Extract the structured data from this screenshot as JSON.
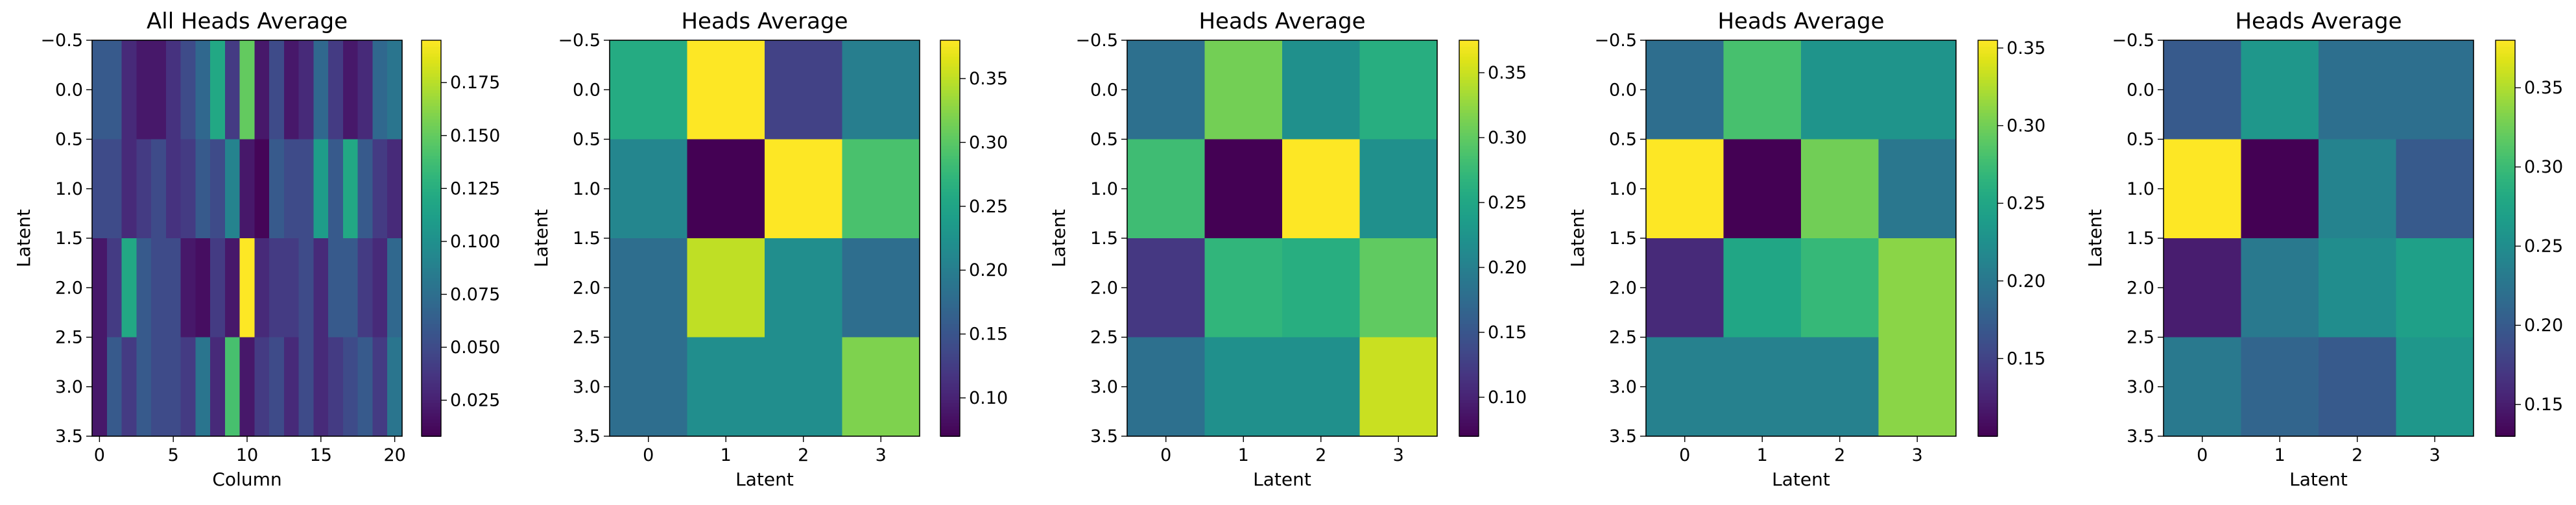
{
  "colormap": "viridis",
  "chart_data": [
    {
      "type": "heatmap",
      "title": "All Heads Average",
      "xlabel": "Column",
      "ylabel": "Latent",
      "x_ticks": [
        "0",
        "5",
        "10",
        "15",
        "20"
      ],
      "y_ticks": [
        "−0.5",
        "0.0",
        "0.5",
        "1.0",
        "1.5",
        "2.0",
        "2.5",
        "3.0",
        "3.5"
      ],
      "colorbar_ticks": [
        "0.025",
        "0.050",
        "0.075",
        "0.100",
        "0.125",
        "0.150",
        "0.175"
      ],
      "xlim": [
        -0.5,
        20.5
      ],
      "ylim": [
        3.5,
        -0.5
      ],
      "vmin": 0.008,
      "vmax": 0.195,
      "values": [
        [
          0.06,
          0.06,
          0.03,
          0.02,
          0.02,
          0.035,
          0.05,
          0.07,
          0.12,
          0.04,
          0.15,
          0.02,
          0.05,
          0.02,
          0.03,
          0.07,
          0.04,
          0.02,
          0.03,
          0.07,
          0.08
        ],
        [
          0.05,
          0.05,
          0.03,
          0.04,
          0.05,
          0.035,
          0.04,
          0.06,
          0.05,
          0.09,
          0.02,
          0.01,
          0.06,
          0.05,
          0.05,
          0.11,
          0.06,
          0.12,
          0.06,
          0.04,
          0.03
        ],
        [
          0.02,
          0.04,
          0.12,
          0.06,
          0.05,
          0.05,
          0.02,
          0.015,
          0.04,
          0.02,
          0.195,
          0.03,
          0.04,
          0.04,
          0.05,
          0.03,
          0.06,
          0.06,
          0.04,
          0.03,
          0.07
        ],
        [
          0.02,
          0.06,
          0.04,
          0.06,
          0.05,
          0.05,
          0.04,
          0.08,
          0.03,
          0.14,
          0.02,
          0.04,
          0.05,
          0.03,
          0.05,
          0.03,
          0.04,
          0.05,
          0.06,
          0.04,
          0.08
        ]
      ]
    },
    {
      "type": "heatmap",
      "title": "Heads Average",
      "xlabel": "Latent",
      "ylabel": "Latent",
      "x_ticks": [
        "0",
        "1",
        "2",
        "3"
      ],
      "y_ticks": [
        "−0.5",
        "0.0",
        "0.5",
        "1.0",
        "1.5",
        "2.0",
        "2.5",
        "3.0",
        "3.5"
      ],
      "colorbar_ticks": [
        "0.10",
        "0.15",
        "0.20",
        "0.25",
        "0.30",
        "0.35"
      ],
      "xlim": [
        -0.5,
        3.5
      ],
      "ylim": [
        3.5,
        -0.5
      ],
      "vmin": 0.07,
      "vmax": 0.38,
      "values": [
        [
          0.26,
          0.38,
          0.13,
          0.2
        ],
        [
          0.21,
          0.07,
          0.38,
          0.29
        ],
        [
          0.18,
          0.35,
          0.22,
          0.18
        ],
        [
          0.18,
          0.22,
          0.22,
          0.32
        ]
      ]
    },
    {
      "type": "heatmap",
      "title": "Heads Average",
      "xlabel": "Latent",
      "ylabel": "Latent",
      "x_ticks": [
        "0",
        "1",
        "2",
        "3"
      ],
      "y_ticks": [
        "−0.5",
        "0.0",
        "0.5",
        "1.0",
        "1.5",
        "2.0",
        "2.5",
        "3.0",
        "3.5"
      ],
      "colorbar_ticks": [
        "0.10",
        "0.15",
        "0.20",
        "0.25",
        "0.30",
        "0.35"
      ],
      "xlim": [
        -0.5,
        3.5
      ],
      "ylim": [
        3.5,
        -0.5
      ],
      "vmin": 0.07,
      "vmax": 0.375,
      "values": [
        [
          0.18,
          0.31,
          0.22,
          0.26
        ],
        [
          0.28,
          0.07,
          0.375,
          0.22
        ],
        [
          0.12,
          0.27,
          0.26,
          0.3
        ],
        [
          0.18,
          0.22,
          0.22,
          0.35
        ]
      ]
    },
    {
      "type": "heatmap",
      "title": "Heads Average",
      "xlabel": "Latent",
      "ylabel": "Latent",
      "x_ticks": [
        "0",
        "1",
        "2",
        "3"
      ],
      "y_ticks": [
        "−0.5",
        "0.0",
        "0.5",
        "1.0",
        "1.5",
        "2.0",
        "2.5",
        "3.0",
        "3.5"
      ],
      "colorbar_ticks": [
        "0.15",
        "0.20",
        "0.25",
        "0.30",
        "0.35"
      ],
      "xlim": [
        -0.5,
        3.5
      ],
      "ylim": [
        3.5,
        -0.5
      ],
      "vmin": 0.1,
      "vmax": 0.355,
      "values": [
        [
          0.19,
          0.28,
          0.23,
          0.23
        ],
        [
          0.355,
          0.1,
          0.3,
          0.2
        ],
        [
          0.13,
          0.25,
          0.27,
          0.31
        ],
        [
          0.21,
          0.21,
          0.21,
          0.31
        ]
      ]
    },
    {
      "type": "heatmap",
      "title": "Heads Average",
      "xlabel": "Latent",
      "ylabel": "Latent",
      "x_ticks": [
        "0",
        "1",
        "2",
        "3"
      ],
      "y_ticks": [
        "−0.5",
        "0.0",
        "0.5",
        "1.0",
        "1.5",
        "2.0",
        "2.5",
        "3.0",
        "3.5"
      ],
      "colorbar_ticks": [
        "0.15",
        "0.20",
        "0.25",
        "0.30",
        "0.35"
      ],
      "xlim": [
        -0.5,
        3.5
      ],
      "ylim": [
        3.5,
        -0.5
      ],
      "vmin": 0.13,
      "vmax": 0.38,
      "values": [
        [
          0.2,
          0.26,
          0.22,
          0.22
        ],
        [
          0.38,
          0.13,
          0.24,
          0.2
        ],
        [
          0.15,
          0.23,
          0.25,
          0.27
        ],
        [
          0.23,
          0.21,
          0.2,
          0.26
        ]
      ]
    }
  ]
}
